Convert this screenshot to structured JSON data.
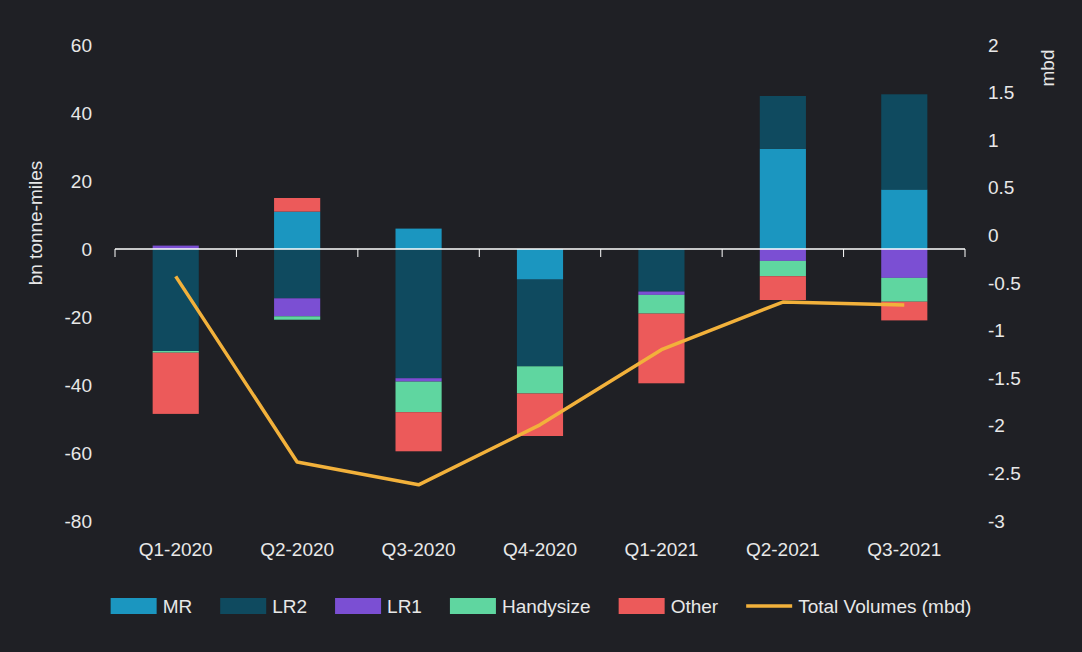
{
  "chart_data": {
    "type": "bar",
    "stacked": true,
    "grid": false,
    "legend": "bottom",
    "y_label": "bn tonne-miles",
    "y2_label": "mbd",
    "categories": [
      "Q1-2020",
      "Q2-2020",
      "Q3-2020",
      "Q4-2020",
      "Q1-2021",
      "Q2-2021",
      "Q3-2021"
    ],
    "ylim": [
      -80,
      60
    ],
    "yticks": [
      -80,
      -60,
      -40,
      -20,
      0,
      20,
      40,
      60
    ],
    "y2lim": [
      -3,
      2
    ],
    "y2ticks": [
      -3,
      -2.5,
      -2,
      -1.5,
      -1,
      -0.5,
      0,
      0.5,
      1,
      1.5,
      2
    ],
    "series": [
      {
        "name": "MR",
        "type": "bar",
        "color": "#1b96c0",
        "values": [
          0,
          11,
          6,
          -9,
          0,
          29.5,
          17.5
        ]
      },
      {
        "name": "LR2",
        "type": "bar",
        "color": "#0f4a5f",
        "values": [
          -30,
          -14.5,
          -38,
          -25.5,
          -12.5,
          15.5,
          28
        ]
      },
      {
        "name": "LR1",
        "type": "bar",
        "color": "#7b4fd3",
        "values": [
          1,
          -5.3,
          -1,
          0,
          -1,
          -3.5,
          -8.5
        ]
      },
      {
        "name": "Handysize",
        "type": "bar",
        "color": "#5fd6a0",
        "values": [
          -0.5,
          -1,
          -9,
          -8,
          -5.5,
          -4.5,
          -7
        ]
      },
      {
        "name": "Other",
        "type": "bar",
        "color": "#ec5a5a",
        "values": [
          -18,
          4,
          -11.5,
          -12.5,
          -20.5,
          -7,
          -5.5
        ]
      },
      {
        "name": "Total Volumes (mbd)",
        "type": "line",
        "axis": "y2",
        "color": "#f2b13b",
        "values": [
          -0.43,
          -2.38,
          -2.62,
          -1.99,
          -1.2,
          -0.7,
          -0.73
        ]
      }
    ]
  }
}
